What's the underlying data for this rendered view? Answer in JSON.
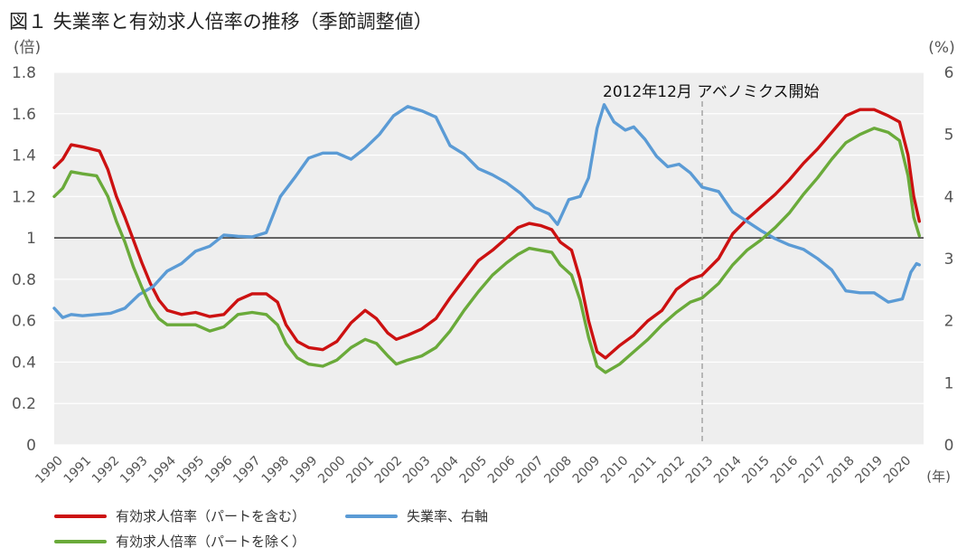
{
  "title": "図１ 失業率と有効求人倍率の推移（季節調整値）",
  "colors": {
    "red": "#cc1111",
    "green": "#6aaa3a",
    "blue": "#5b9bd5",
    "grid": "#ffffff",
    "plotbg": "#eeeeee"
  },
  "chart_data": {
    "type": "line",
    "title": "図１ 失業率と有効求人倍率の推移（季節調整値）",
    "xlabel": "(年)",
    "ylabel": "(倍)",
    "y2label": "(%)",
    "ylim": [
      0,
      1.8
    ],
    "y2lim": [
      0,
      6
    ],
    "yticks": [
      "0",
      "0.2",
      "0.4",
      "0.6",
      "0.8",
      "1",
      "1.2",
      "1.4",
      "1.6",
      "1.8"
    ],
    "y2ticks": [
      "0",
      "1",
      "2",
      "3",
      "4",
      "5",
      "6"
    ],
    "xticks": [
      "1990",
      "1991",
      "1992",
      "1993",
      "1994",
      "1995",
      "1996",
      "1997",
      "1998",
      "1999",
      "2000",
      "2001",
      "2002",
      "2003",
      "2004",
      "2005",
      "2006",
      "2007",
      "2008",
      "2009",
      "2010",
      "2011",
      "2012",
      "2013",
      "2014",
      "2015",
      "2016",
      "2017",
      "2018",
      "2019",
      "2020"
    ],
    "xlim": [
      1990,
      2020.75
    ],
    "grid": true,
    "reference_line": 1,
    "annotation": {
      "text": "2012年12月 アベノミクス開始",
      "x": 2012.92
    },
    "legend_placement": "bottom",
    "series": [
      {
        "name": "有効求人倍率（パートを含む）",
        "axis": "left",
        "color": "#cc1111",
        "points": [
          [
            1990.0,
            1.34
          ],
          [
            1990.3,
            1.38
          ],
          [
            1990.6,
            1.45
          ],
          [
            1991.0,
            1.44
          ],
          [
            1991.3,
            1.43
          ],
          [
            1991.6,
            1.42
          ],
          [
            1991.9,
            1.33
          ],
          [
            1992.2,
            1.2
          ],
          [
            1992.5,
            1.1
          ],
          [
            1992.8,
            0.99
          ],
          [
            1993.1,
            0.88
          ],
          [
            1993.4,
            0.78
          ],
          [
            1993.7,
            0.7
          ],
          [
            1994.0,
            0.65
          ],
          [
            1994.5,
            0.63
          ],
          [
            1995.0,
            0.64
          ],
          [
            1995.5,
            0.62
          ],
          [
            1996.0,
            0.63
          ],
          [
            1996.5,
            0.7
          ],
          [
            1997.0,
            0.73
          ],
          [
            1997.5,
            0.73
          ],
          [
            1997.9,
            0.69
          ],
          [
            1998.2,
            0.58
          ],
          [
            1998.6,
            0.5
          ],
          [
            1999.0,
            0.47
          ],
          [
            1999.5,
            0.46
          ],
          [
            2000.0,
            0.5
          ],
          [
            2000.5,
            0.59
          ],
          [
            2001.0,
            0.65
          ],
          [
            2001.4,
            0.61
          ],
          [
            2001.8,
            0.54
          ],
          [
            2002.1,
            0.51
          ],
          [
            2002.5,
            0.53
          ],
          [
            2003.0,
            0.56
          ],
          [
            2003.5,
            0.61
          ],
          [
            2004.0,
            0.71
          ],
          [
            2004.5,
            0.8
          ],
          [
            2005.0,
            0.89
          ],
          [
            2005.5,
            0.94
          ],
          [
            2006.0,
            1.0
          ],
          [
            2006.4,
            1.05
          ],
          [
            2006.8,
            1.07
          ],
          [
            2007.2,
            1.06
          ],
          [
            2007.6,
            1.04
          ],
          [
            2007.9,
            0.98
          ],
          [
            2008.3,
            0.94
          ],
          [
            2008.6,
            0.8
          ],
          [
            2008.9,
            0.6
          ],
          [
            2009.2,
            0.45
          ],
          [
            2009.5,
            0.42
          ],
          [
            2010.0,
            0.48
          ],
          [
            2010.5,
            0.53
          ],
          [
            2011.0,
            0.6
          ],
          [
            2011.5,
            0.65
          ],
          [
            2012.0,
            0.75
          ],
          [
            2012.5,
            0.8
          ],
          [
            2012.92,
            0.82
          ],
          [
            2013.5,
            0.9
          ],
          [
            2014.0,
            1.02
          ],
          [
            2014.5,
            1.09
          ],
          [
            2015.0,
            1.15
          ],
          [
            2015.5,
            1.21
          ],
          [
            2016.0,
            1.28
          ],
          [
            2016.5,
            1.36
          ],
          [
            2017.0,
            1.43
          ],
          [
            2017.5,
            1.51
          ],
          [
            2018.0,
            1.59
          ],
          [
            2018.5,
            1.62
          ],
          [
            2019.0,
            1.62
          ],
          [
            2019.5,
            1.59
          ],
          [
            2019.9,
            1.56
          ],
          [
            2020.2,
            1.4
          ],
          [
            2020.4,
            1.2
          ],
          [
            2020.6,
            1.08
          ]
        ]
      },
      {
        "name": "失業率、右軸",
        "axis": "right",
        "color": "#5b9bd5",
        "points": [
          [
            1990.0,
            2.2
          ],
          [
            1990.3,
            2.05
          ],
          [
            1990.6,
            2.1
          ],
          [
            1991.0,
            2.08
          ],
          [
            1991.5,
            2.1
          ],
          [
            1992.0,
            2.12
          ],
          [
            1992.5,
            2.2
          ],
          [
            1993.0,
            2.42
          ],
          [
            1993.5,
            2.55
          ],
          [
            1994.0,
            2.8
          ],
          [
            1994.5,
            2.92
          ],
          [
            1995.0,
            3.12
          ],
          [
            1995.5,
            3.2
          ],
          [
            1996.0,
            3.38
          ],
          [
            1996.5,
            3.36
          ],
          [
            1997.0,
            3.35
          ],
          [
            1997.5,
            3.42
          ],
          [
            1998.0,
            4.0
          ],
          [
            1998.5,
            4.3
          ],
          [
            1999.0,
            4.62
          ],
          [
            1999.5,
            4.7
          ],
          [
            2000.0,
            4.7
          ],
          [
            2000.5,
            4.6
          ],
          [
            2001.0,
            4.78
          ],
          [
            2001.5,
            5.0
          ],
          [
            2002.0,
            5.3
          ],
          [
            2002.5,
            5.45
          ],
          [
            2003.0,
            5.38
          ],
          [
            2003.5,
            5.28
          ],
          [
            2004.0,
            4.82
          ],
          [
            2004.5,
            4.68
          ],
          [
            2005.0,
            4.45
          ],
          [
            2005.5,
            4.35
          ],
          [
            2006.0,
            4.22
          ],
          [
            2006.5,
            4.05
          ],
          [
            2007.0,
            3.82
          ],
          [
            2007.5,
            3.72
          ],
          [
            2007.8,
            3.55
          ],
          [
            2008.2,
            3.95
          ],
          [
            2008.6,
            4.0
          ],
          [
            2008.9,
            4.3
          ],
          [
            2009.2,
            5.1
          ],
          [
            2009.45,
            5.48
          ],
          [
            2009.8,
            5.2
          ],
          [
            2010.2,
            5.07
          ],
          [
            2010.5,
            5.12
          ],
          [
            2010.9,
            4.92
          ],
          [
            2011.3,
            4.65
          ],
          [
            2011.7,
            4.48
          ],
          [
            2012.1,
            4.52
          ],
          [
            2012.5,
            4.38
          ],
          [
            2012.92,
            4.15
          ],
          [
            2013.5,
            4.08
          ],
          [
            2014.0,
            3.75
          ],
          [
            2014.5,
            3.6
          ],
          [
            2015.0,
            3.45
          ],
          [
            2015.5,
            3.32
          ],
          [
            2016.0,
            3.22
          ],
          [
            2016.5,
            3.15
          ],
          [
            2017.0,
            3.0
          ],
          [
            2017.5,
            2.82
          ],
          [
            2018.0,
            2.48
          ],
          [
            2018.5,
            2.45
          ],
          [
            2019.0,
            2.45
          ],
          [
            2019.5,
            2.3
          ],
          [
            2020.0,
            2.35
          ],
          [
            2020.3,
            2.78
          ],
          [
            2020.5,
            2.92
          ],
          [
            2020.6,
            2.9
          ]
        ]
      },
      {
        "name": "有効求人倍率（パートを除く）",
        "axis": "left",
        "color": "#6aaa3a",
        "points": [
          [
            1990.0,
            1.2
          ],
          [
            1990.3,
            1.24
          ],
          [
            1990.6,
            1.32
          ],
          [
            1991.0,
            1.31
          ],
          [
            1991.5,
            1.3
          ],
          [
            1991.9,
            1.2
          ],
          [
            1992.2,
            1.08
          ],
          [
            1992.5,
            0.98
          ],
          [
            1992.8,
            0.86
          ],
          [
            1993.1,
            0.76
          ],
          [
            1993.4,
            0.67
          ],
          [
            1993.7,
            0.61
          ],
          [
            1994.0,
            0.58
          ],
          [
            1994.5,
            0.58
          ],
          [
            1995.0,
            0.58
          ],
          [
            1995.5,
            0.55
          ],
          [
            1996.0,
            0.57
          ],
          [
            1996.5,
            0.63
          ],
          [
            1997.0,
            0.64
          ],
          [
            1997.5,
            0.63
          ],
          [
            1997.9,
            0.58
          ],
          [
            1998.2,
            0.49
          ],
          [
            1998.6,
            0.42
          ],
          [
            1999.0,
            0.39
          ],
          [
            1999.5,
            0.38
          ],
          [
            2000.0,
            0.41
          ],
          [
            2000.5,
            0.47
          ],
          [
            2001.0,
            0.51
          ],
          [
            2001.4,
            0.49
          ],
          [
            2001.8,
            0.43
          ],
          [
            2002.1,
            0.39
          ],
          [
            2002.5,
            0.41
          ],
          [
            2003.0,
            0.43
          ],
          [
            2003.5,
            0.47
          ],
          [
            2004.0,
            0.55
          ],
          [
            2004.5,
            0.65
          ],
          [
            2005.0,
            0.74
          ],
          [
            2005.5,
            0.82
          ],
          [
            2006.0,
            0.88
          ],
          [
            2006.4,
            0.92
          ],
          [
            2006.8,
            0.95
          ],
          [
            2007.2,
            0.94
          ],
          [
            2007.6,
            0.93
          ],
          [
            2007.9,
            0.87
          ],
          [
            2008.3,
            0.82
          ],
          [
            2008.6,
            0.7
          ],
          [
            2008.9,
            0.52
          ],
          [
            2009.2,
            0.38
          ],
          [
            2009.5,
            0.35
          ],
          [
            2010.0,
            0.39
          ],
          [
            2010.5,
            0.45
          ],
          [
            2011.0,
            0.51
          ],
          [
            2011.5,
            0.58
          ],
          [
            2012.0,
            0.64
          ],
          [
            2012.5,
            0.69
          ],
          [
            2012.92,
            0.71
          ],
          [
            2013.5,
            0.78
          ],
          [
            2014.0,
            0.87
          ],
          [
            2014.5,
            0.94
          ],
          [
            2015.0,
            0.99
          ],
          [
            2015.5,
            1.05
          ],
          [
            2016.0,
            1.12
          ],
          [
            2016.5,
            1.21
          ],
          [
            2017.0,
            1.29
          ],
          [
            2017.5,
            1.38
          ],
          [
            2018.0,
            1.46
          ],
          [
            2018.5,
            1.5
          ],
          [
            2019.0,
            1.53
          ],
          [
            2019.5,
            1.51
          ],
          [
            2019.9,
            1.47
          ],
          [
            2020.2,
            1.3
          ],
          [
            2020.4,
            1.1
          ],
          [
            2020.6,
            1.01
          ]
        ]
      }
    ]
  }
}
